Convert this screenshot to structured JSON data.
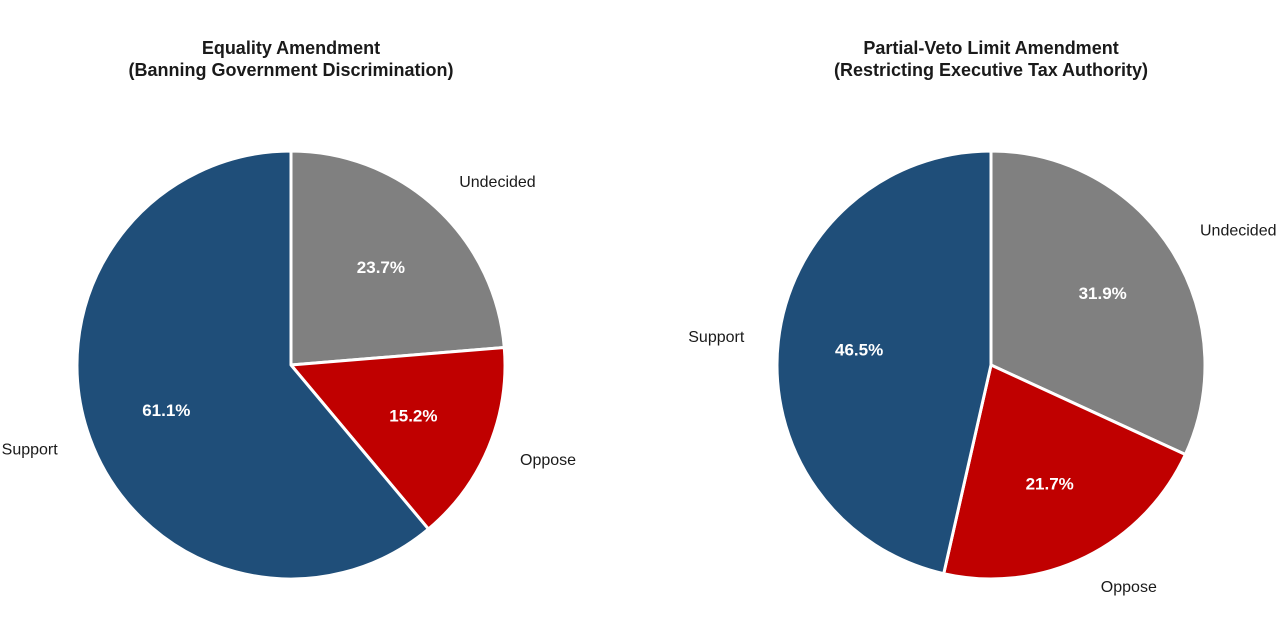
{
  "chart_data": [
    {
      "type": "pie",
      "title_lines": [
        "Equality Amendment",
        "(Banning Government Discrimination)"
      ],
      "start": "top",
      "direction": "clockwise",
      "slices": [
        {
          "label": "Undecided",
          "value": 23.7,
          "value_label": "23.7%",
          "color": "#808080"
        },
        {
          "label": "Oppose",
          "value": 15.2,
          "value_label": "15.2%",
          "color": "#c00000"
        },
        {
          "label": "Support",
          "value": 61.1,
          "value_label": "61.1%",
          "color": "#1f4e79"
        }
      ]
    },
    {
      "type": "pie",
      "title_lines": [
        "Partial-Veto Limit Amendment",
        "(Restricting Executive Tax Authority)"
      ],
      "start": "top",
      "direction": "clockwise",
      "slices": [
        {
          "label": "Undecided",
          "value": 31.9,
          "value_label": "31.9%",
          "color": "#808080"
        },
        {
          "label": "Oppose",
          "value": 21.7,
          "value_label": "21.7%",
          "color": "#c00000"
        },
        {
          "label": "Support",
          "value": 46.5,
          "value_label": "46.5%",
          "color": "#1f4e79"
        }
      ]
    }
  ]
}
